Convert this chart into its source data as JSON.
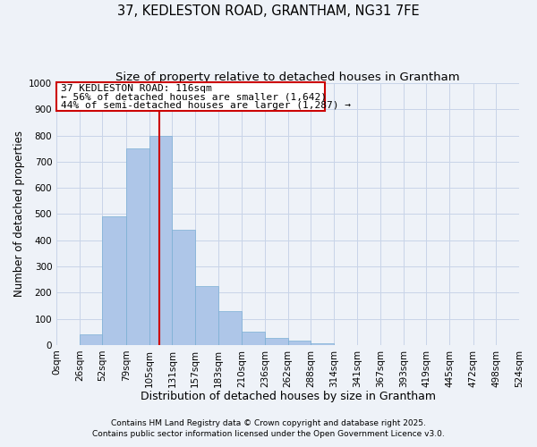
{
  "title": "37, KEDLESTON ROAD, GRANTHAM, NG31 7FE",
  "subtitle": "Size of property relative to detached houses in Grantham",
  "xlabel": "Distribution of detached houses by size in Grantham",
  "ylabel": "Number of detached properties",
  "bar_edges": [
    0,
    26,
    52,
    79,
    105,
    131,
    157,
    183,
    210,
    236,
    262,
    288,
    314,
    341,
    367,
    393,
    419,
    445,
    472,
    498,
    524
  ],
  "bar_heights": [
    0,
    42,
    490,
    750,
    800,
    440,
    225,
    128,
    52,
    28,
    15,
    8,
    0,
    0,
    0,
    0,
    0,
    0,
    0,
    0
  ],
  "bar_color": "#aec6e8",
  "bar_edge_color": "#7aafd4",
  "vline_x": 116,
  "vline_color": "#cc0000",
  "ann_line1": "37 KEDLESTON ROAD: 116sqm",
  "ann_line2": "← 56% of detached houses are smaller (1,642)",
  "ann_line3": "44% of semi-detached houses are larger (1,287) →",
  "ylim": [
    0,
    1000
  ],
  "yticks": [
    0,
    100,
    200,
    300,
    400,
    500,
    600,
    700,
    800,
    900,
    1000
  ],
  "xtick_labels": [
    "0sqm",
    "26sqm",
    "52sqm",
    "79sqm",
    "105sqm",
    "131sqm",
    "157sqm",
    "183sqm",
    "210sqm",
    "236sqm",
    "262sqm",
    "288sqm",
    "314sqm",
    "341sqm",
    "367sqm",
    "393sqm",
    "419sqm",
    "445sqm",
    "472sqm",
    "498sqm",
    "524sqm"
  ],
  "grid_color": "#c8d4e8",
  "background_color": "#eef2f8",
  "footer_line1": "Contains HM Land Registry data © Crown copyright and database right 2025.",
  "footer_line2": "Contains public sector information licensed under the Open Government Licence v3.0.",
  "title_fontsize": 10.5,
  "subtitle_fontsize": 9.5,
  "xlabel_fontsize": 9,
  "ylabel_fontsize": 8.5,
  "annotation_fontsize": 8,
  "footer_fontsize": 6.5,
  "tick_fontsize": 7.5
}
